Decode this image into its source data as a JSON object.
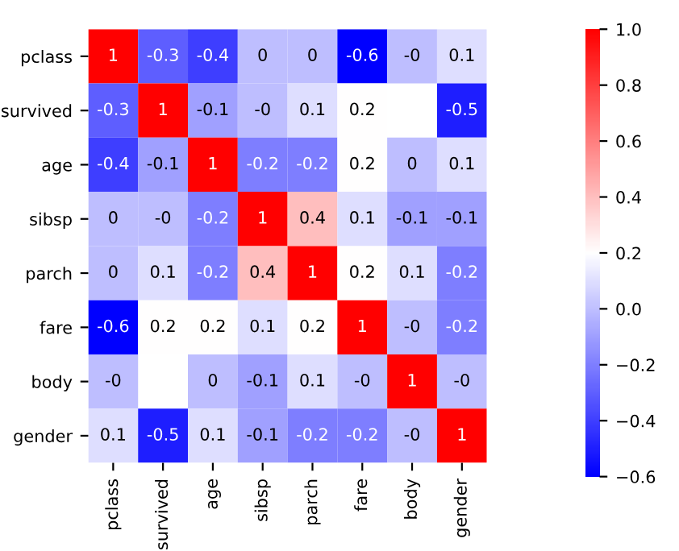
{
  "chart_data": {
    "type": "heatmap",
    "categories": [
      "pclass",
      "survived",
      "age",
      "sibsp",
      "parch",
      "fare",
      "body",
      "gender"
    ],
    "y_categories": [
      "pclass",
      "survived",
      "age",
      "sibsp",
      "parch",
      "fare",
      "body",
      "gender"
    ],
    "cells": [
      [
        1,
        -0.3,
        -0.4,
        0,
        0,
        -0.6,
        0,
        0.1
      ],
      [
        -0.3,
        1,
        -0.1,
        0,
        0.1,
        0.2,
        null,
        -0.5
      ],
      [
        -0.4,
        -0.1,
        1,
        -0.2,
        -0.2,
        0.2,
        0,
        0.1
      ],
      [
        0,
        0,
        -0.2,
        1,
        0.4,
        0.1,
        -0.1,
        -0.1
      ],
      [
        0,
        0.1,
        -0.2,
        0.4,
        1,
        0.2,
        0.1,
        -0.2
      ],
      [
        -0.6,
        0.2,
        0.2,
        0.1,
        0.2,
        1,
        0,
        -0.2
      ],
      [
        0,
        null,
        0,
        -0.1,
        0.1,
        0,
        1,
        0
      ],
      [
        0.1,
        -0.5,
        0.1,
        -0.1,
        -0.2,
        -0.2,
        0,
        1
      ]
    ],
    "cell_labels": [
      [
        "1",
        "-0.3",
        "-0.4",
        "0",
        "0",
        "-0.6",
        "-0",
        "0.1"
      ],
      [
        "-0.3",
        "1",
        "-0.1",
        "-0",
        "0.1",
        "0.2",
        null,
        "-0.5"
      ],
      [
        "-0.4",
        "-0.1",
        "1",
        "-0.2",
        "-0.2",
        "0.2",
        "0",
        "0.1"
      ],
      [
        "0",
        "-0",
        "-0.2",
        "1",
        "0.4",
        "0.1",
        "-0.1",
        "-0.1"
      ],
      [
        "0",
        "0.1",
        "-0.2",
        "0.4",
        "1",
        "0.2",
        "0.1",
        "-0.2"
      ],
      [
        "-0.6",
        "0.2",
        "0.2",
        "0.1",
        "0.2",
        "1",
        "-0",
        "-0.2"
      ],
      [
        "-0",
        null,
        "0",
        "-0.1",
        "0.1",
        "-0",
        "1",
        "-0"
      ],
      [
        "0.1",
        "-0.5",
        "0.1",
        "-0.1",
        "-0.2",
        "-0.2",
        "-0",
        "1"
      ]
    ],
    "clim": [
      -0.6,
      1.0
    ],
    "cticks": [
      {
        "value": -0.6,
        "label": "−0.6"
      },
      {
        "value": -0.4,
        "label": "−0.4"
      },
      {
        "value": -0.2,
        "label": "−0.2"
      },
      {
        "value": 0,
        "label": "0.0"
      },
      0.2,
      0.4,
      0.6,
      0.8,
      {
        "value": 1,
        "label": "1.0"
      }
    ]
  }
}
